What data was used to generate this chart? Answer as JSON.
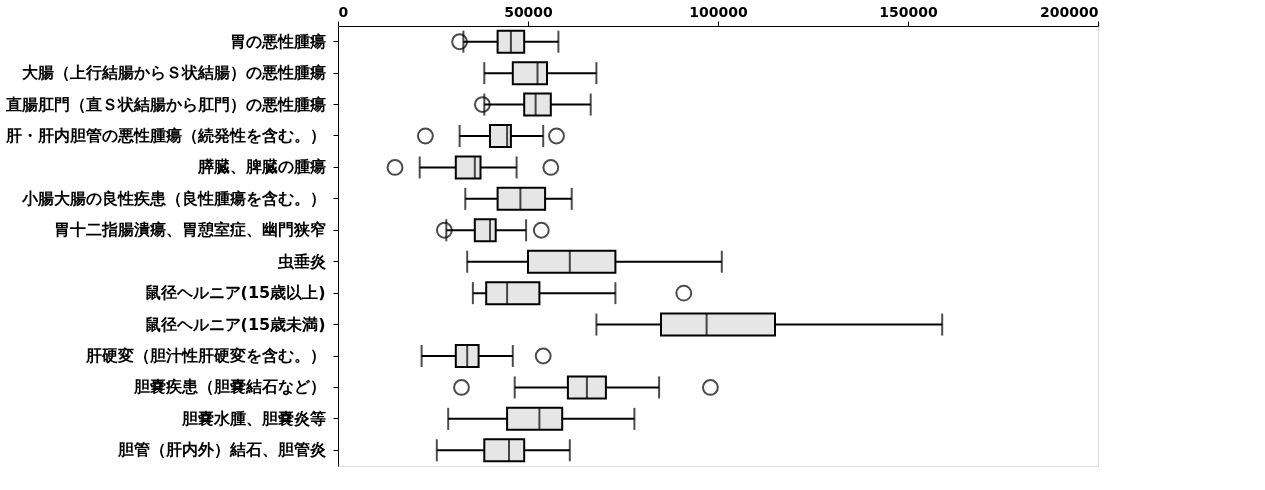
{
  "chart_data": {
    "type": "box",
    "orientation": "horizontal",
    "categories": [
      "胃の悪性腫瘍",
      "大腸（上行結腸からＳ状結腸）の悪性腫瘍",
      "直腸肛門（直Ｓ状結腸から肛門）の悪性腫瘍",
      "肝・肝内胆管の悪性腫瘍（続発性を含む。）",
      "膵臓、脾臓の腫瘍",
      "小腸大腸の良性疾患（良性腫瘍を含む。）",
      "胃十二指腸潰瘍、胃憩室症、幽門狭窄",
      "虫垂炎",
      "鼠径ヘルニア(15歳以上)",
      "鼠径ヘルニア(15歳未満)",
      "肝硬変（胆汁性肝硬変を含む。）",
      "胆嚢疾患（胆嚢結石など）",
      "胆嚢水腫、胆嚢炎等",
      "胆管（肝内外）結石、胆管炎"
    ],
    "boxes": [
      {
        "low": 33000,
        "q1": 42000,
        "median": 45500,
        "q3": 49000,
        "high": 58000,
        "outliers": [
          32000
        ]
      },
      {
        "low": 38500,
        "q1": 46000,
        "median": 52500,
        "q3": 55000,
        "high": 68000
      },
      {
        "low": 38500,
        "q1": 49000,
        "median": 52000,
        "q3": 56000,
        "high": 66500,
        "outliers": [
          38000
        ]
      },
      {
        "low": 32000,
        "q1": 40000,
        "median": 44500,
        "q3": 45500,
        "high": 54000,
        "outliers": [
          23000,
          57500
        ]
      },
      {
        "low": 21500,
        "q1": 31000,
        "median": 36000,
        "q3": 37500,
        "high": 47000,
        "outliers": [
          15000,
          56000
        ]
      },
      {
        "low": 33500,
        "q1": 42000,
        "median": 48000,
        "q3": 54500,
        "high": 61500
      },
      {
        "low": 28500,
        "q1": 36000,
        "median": 40000,
        "q3": 41500,
        "high": 49500,
        "outliers": [
          28000,
          53500
        ]
      },
      {
        "low": 34000,
        "q1": 50000,
        "median": 61000,
        "q3": 73000,
        "high": 101000
      },
      {
        "low": 35500,
        "q1": 39000,
        "median": 44500,
        "q3": 53000,
        "high": 73000,
        "outliers": [
          91000
        ]
      },
      {
        "low": 68000,
        "q1": 85000,
        "median": 97000,
        "q3": 115000,
        "high": 159000
      },
      {
        "low": 22000,
        "q1": 31000,
        "median": 34000,
        "q3": 37000,
        "high": 46000,
        "outliers": [
          54000
        ]
      },
      {
        "low": 46500,
        "q1": 60500,
        "median": 65500,
        "q3": 70500,
        "high": 84500,
        "outliers": [
          32500,
          98000
        ]
      },
      {
        "low": 29000,
        "q1": 44500,
        "median": 53000,
        "q3": 59000,
        "high": 78000
      },
      {
        "low": 26000,
        "q1": 38500,
        "median": 45000,
        "q3": 49000,
        "high": 61000
      }
    ],
    "color": "#e6e6e6",
    "xlim": [
      0,
      200000
    ],
    "xticks": [
      0,
      50000,
      100000,
      150000,
      200000
    ],
    "grid": false
  }
}
